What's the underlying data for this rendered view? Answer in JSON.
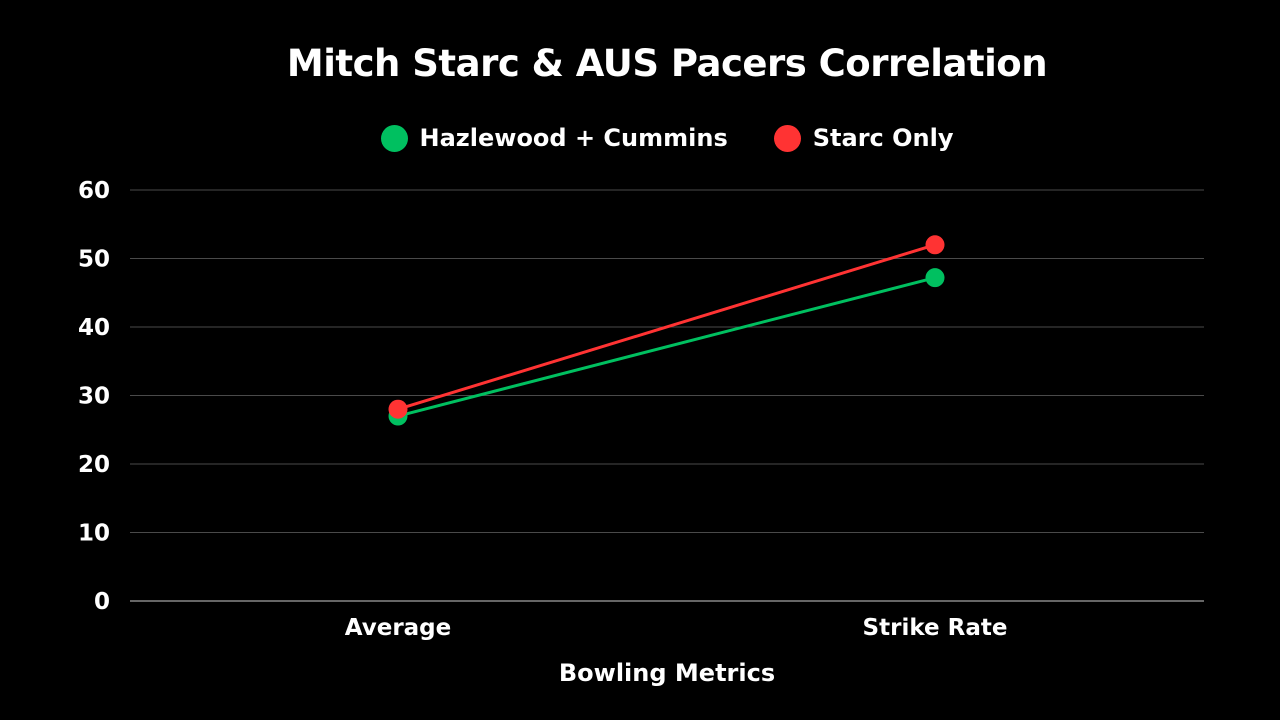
{
  "chart_data": {
    "type": "line",
    "title": "Mitch Starc & AUS Pacers Correlation",
    "xlabel": "Bowling Metrics",
    "ylabel": "",
    "categories": [
      "Average",
      "Strike Rate"
    ],
    "ylim": [
      0,
      60
    ],
    "yticks": [
      0,
      10,
      20,
      30,
      40,
      50,
      60
    ],
    "grid": true,
    "legend_position": "top",
    "series": [
      {
        "name": "Hazlewood + Cummins",
        "values": [
          27,
          47.2
        ],
        "color": "#00C060"
      },
      {
        "name": "Starc Only",
        "values": [
          28,
          52
        ],
        "color": "#FF3333"
      }
    ]
  }
}
